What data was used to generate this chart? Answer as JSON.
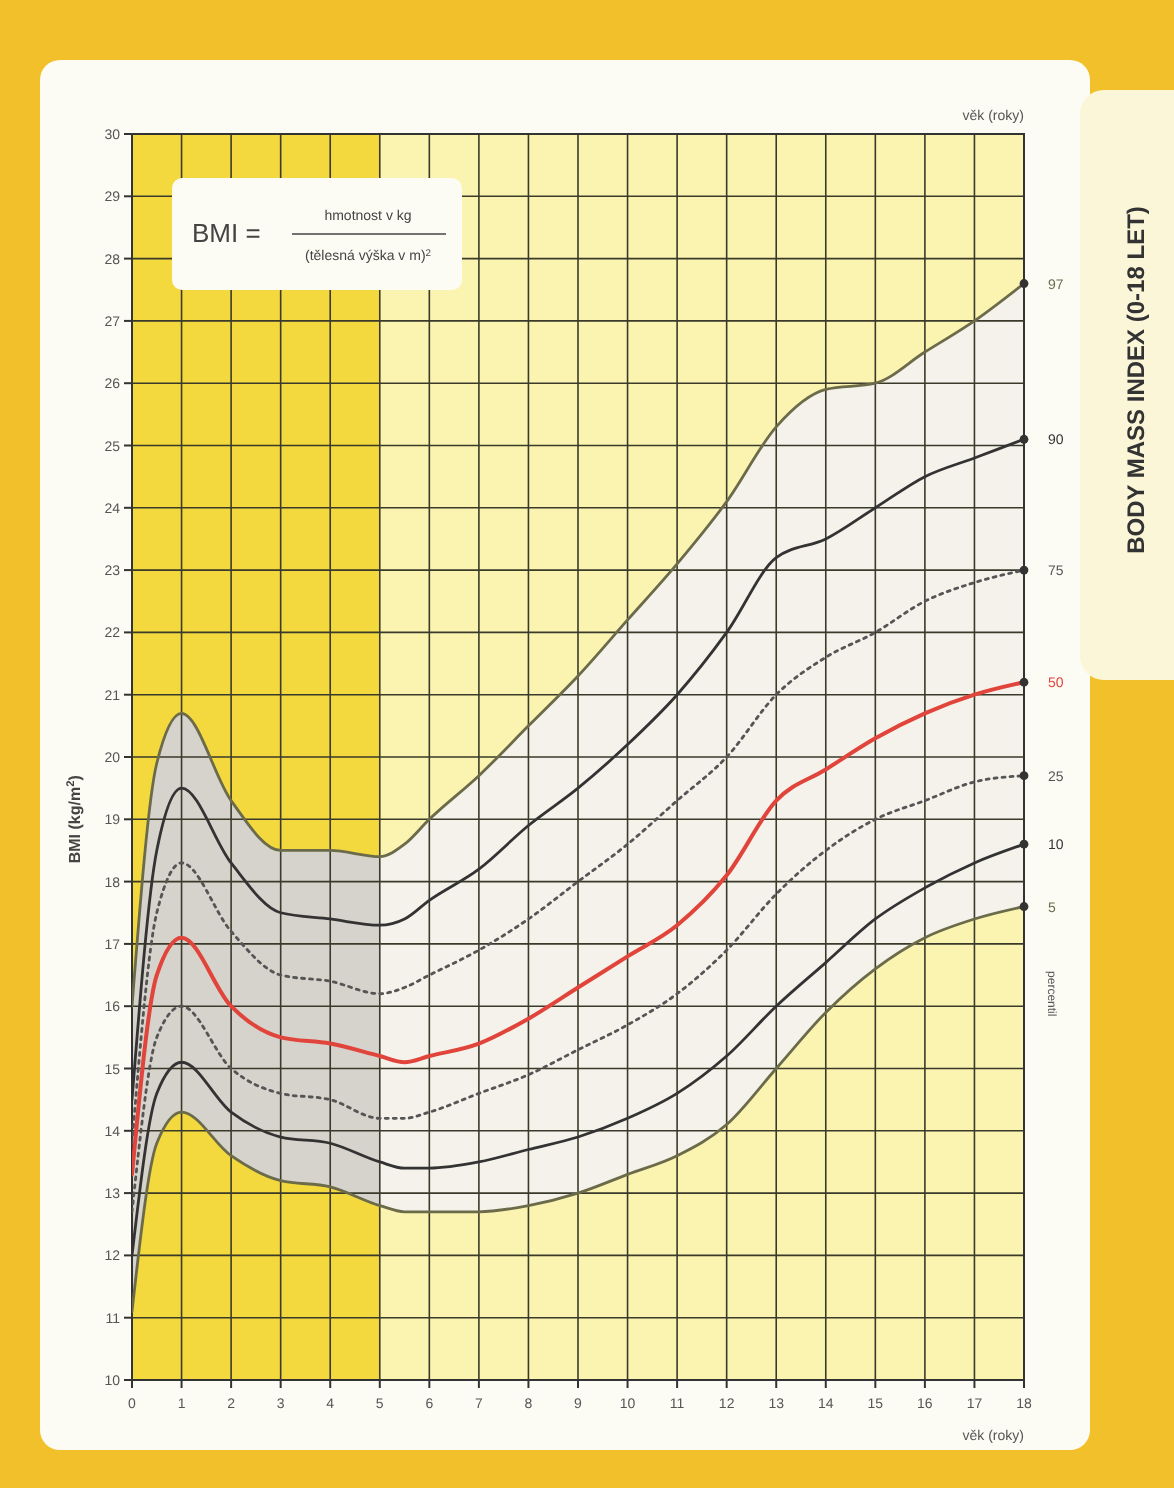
{
  "chart_data": {
    "type": "line",
    "title": "BODY MASS INDEX (0-18 LET)",
    "xlabel": "věk (roky)",
    "ylabel": "BMI (kg/m$^{2}$)",
    "x": [
      0,
      0.5,
      1,
      2,
      3,
      4,
      5,
      5.5,
      6,
      7,
      8,
      9,
      10,
      11,
      12,
      13,
      14,
      15,
      16,
      17,
      18
    ],
    "series": [
      {
        "name": "97",
        "color": "#6b6b4a",
        "line_style": "solid",
        "values": [
          16.0,
          19.9,
          20.7,
          19.3,
          18.5,
          18.5,
          18.4,
          18.6,
          19.0,
          19.7,
          20.5,
          21.3,
          22.2,
          23.1,
          24.1,
          25.3,
          25.9,
          26.0,
          26.5,
          27.0,
          27.6
        ]
      },
      {
        "name": "90",
        "color": "#333333",
        "line_style": "solid",
        "values": [
          14.5,
          18.5,
          19.5,
          18.3,
          17.5,
          17.4,
          17.3,
          17.4,
          17.7,
          18.2,
          18.9,
          19.5,
          20.2,
          21.0,
          22.0,
          23.2,
          23.5,
          24.0,
          24.5,
          24.8,
          25.1
        ]
      },
      {
        "name": "75",
        "color": "#555555",
        "line_style": "dotted",
        "values": [
          13.8,
          17.5,
          18.3,
          17.2,
          16.5,
          16.4,
          16.2,
          16.3,
          16.5,
          16.9,
          17.4,
          18.0,
          18.6,
          19.3,
          20.0,
          21.0,
          21.6,
          22.0,
          22.5,
          22.8,
          23.0
        ]
      },
      {
        "name": "50",
        "color": "#e0443a",
        "line_style": "solid",
        "values": [
          13.3,
          16.5,
          17.1,
          16.0,
          15.5,
          15.4,
          15.2,
          15.1,
          15.2,
          15.4,
          15.8,
          16.3,
          16.8,
          17.3,
          18.1,
          19.3,
          19.8,
          20.3,
          20.7,
          21.0,
          21.2
        ],
        "lower": [
          11.1,
          13.8,
          14.3,
          13.6,
          13.2,
          13.1,
          12.8,
          12.7,
          12.7,
          12.7,
          12.8,
          13.0,
          13.3,
          13.6,
          14.1,
          15.0,
          15.9,
          16.6,
          17.1,
          17.4,
          17.6
        ],
        "upper": [
          16.0,
          19.9,
          20.7,
          19.3,
          18.5,
          18.5,
          18.4,
          18.6,
          19.0,
          19.7,
          20.5,
          21.3,
          22.2,
          23.1,
          24.1,
          25.3,
          25.9,
          26.0,
          26.5,
          27.0,
          27.6
        ]
      },
      {
        "name": "25",
        "color": "#555555",
        "line_style": "dotted",
        "values": [
          12.7,
          15.5,
          16.0,
          15.0,
          14.6,
          14.5,
          14.2,
          14.2,
          14.3,
          14.6,
          14.9,
          15.3,
          15.7,
          16.2,
          16.9,
          17.8,
          18.5,
          19.0,
          19.3,
          19.6,
          19.7
        ]
      },
      {
        "name": "10",
        "color": "#333333",
        "line_style": "solid",
        "values": [
          12.0,
          14.6,
          15.1,
          14.3,
          13.9,
          13.8,
          13.5,
          13.4,
          13.4,
          13.5,
          13.7,
          13.9,
          14.2,
          14.6,
          15.2,
          16.0,
          16.7,
          17.4,
          17.9,
          18.3,
          18.6
        ]
      },
      {
        "name": "5",
        "color": "#6b6b4a",
        "line_style": "solid",
        "values": [
          11.1,
          13.8,
          14.3,
          13.6,
          13.2,
          13.1,
          12.8,
          12.7,
          12.7,
          12.7,
          12.8,
          13.0,
          13.3,
          13.6,
          14.1,
          15.0,
          15.9,
          16.6,
          17.1,
          17.4,
          17.6
        ]
      }
    ],
    "xlim": [
      0,
      18
    ],
    "xticks": [
      0,
      1,
      2,
      3,
      4,
      5,
      6,
      7,
      8,
      9,
      10,
      11,
      12,
      13,
      14,
      15,
      16,
      17,
      18
    ],
    "ylim": [
      10,
      30
    ],
    "yticks": [
      10,
      11,
      12,
      13,
      14,
      15,
      16,
      17,
      18,
      19,
      20,
      21,
      22,
      23,
      24,
      25,
      26,
      27,
      28,
      29,
      30
    ],
    "grid": true,
    "legend": false,
    "marker": "none",
    "bands": [
      {
        "axis": "x",
        "from": 0,
        "to": 5,
        "color": "#f3d83e"
      }
    ],
    "annotations": [
      "věk (roky)",
      "percentil",
      "BMI =",
      "hmotnost v kg",
      "(tělesná výška v m)$^{2}$"
    ]
  }
}
